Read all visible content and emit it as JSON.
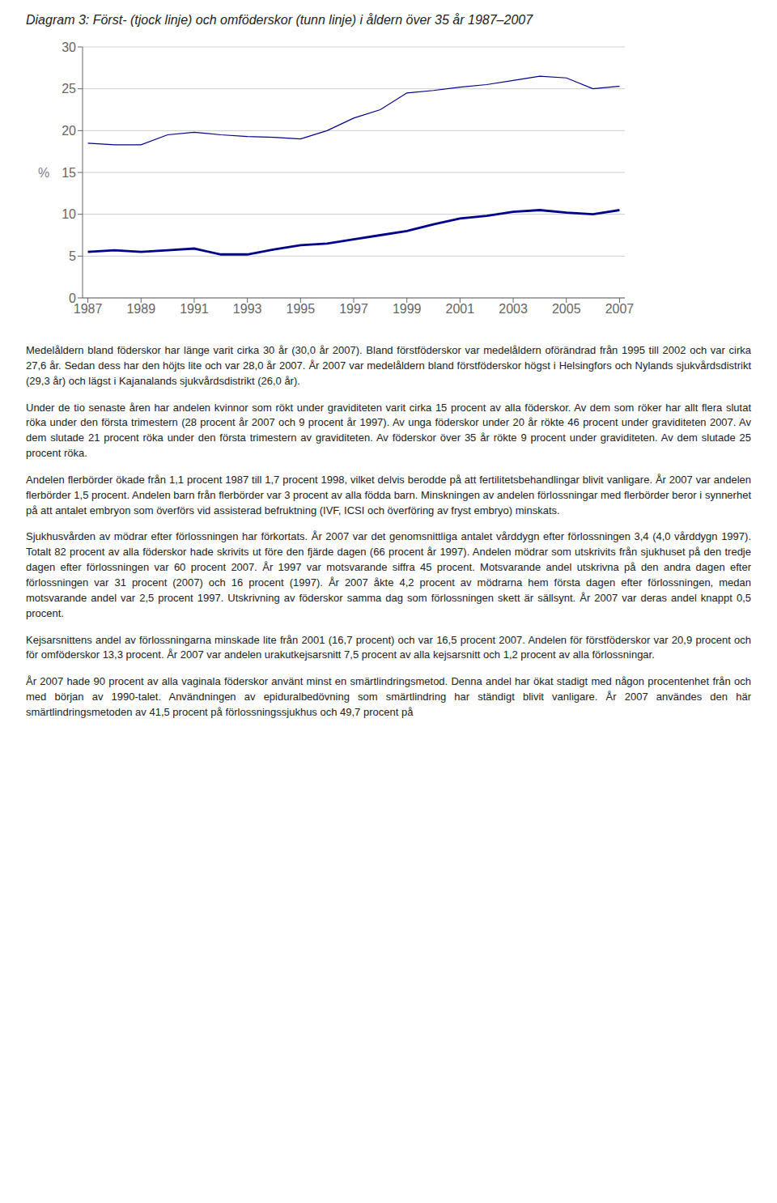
{
  "chart_data": {
    "type": "line",
    "title": "Diagram 3: Först- (tjock linje) och omföderskor (tunn linje) i åldern över 35 år 1987–2007",
    "x": [
      1987,
      1988,
      1989,
      1990,
      1991,
      1992,
      1993,
      1994,
      1995,
      1996,
      1997,
      1998,
      1999,
      2000,
      2001,
      2002,
      2003,
      2004,
      2005,
      2006,
      2007
    ],
    "series": [
      {
        "color": "#00008B",
        "values": [
          18.5,
          18.3,
          18.3,
          19.5,
          19.8,
          19.5,
          19.3,
          19.2,
          19.0,
          20.0,
          21.5,
          22.5,
          24.5,
          24.8,
          25.2,
          25.5,
          26.0,
          26.5,
          26.3,
          25.0,
          25.3
        ]
      },
      {
        "color": "#00008B",
        "values": [
          5.5,
          5.7,
          5.5,
          5.7,
          5.9,
          5.2,
          5.2,
          5.8,
          6.3,
          6.5,
          7.0,
          7.5,
          8.0,
          8.8,
          9.5,
          9.8,
          10.3,
          10.5,
          10.2,
          10.0,
          10.5
        ]
      }
    ],
    "xlim": [
      1986.8,
      2007.2
    ],
    "xticks": [
      1987,
      1989,
      1991,
      1993,
      1995,
      1997,
      1999,
      2001,
      2003,
      2005,
      2007
    ],
    "ylim": [
      0,
      30
    ],
    "yticks": [
      0,
      5,
      10,
      15,
      20,
      25,
      30
    ],
    "ylabel": "%",
    "grid": true,
    "annotations": [
      "Medelåldern bland föderskor har länge varit cirka 30 år (30,0 år 2007). Bland förstföderskor var medelåldern oförändrad från 1995 till 2002 och var cirka 27,6 år. Sedan dess har den höjts lite och var 28,0 år 2007. År 2007 var medelåldern bland förstföderskor högst i Helsingfors och Nylands sjukvårdsdistrikt (29,3 år) och lägst i Kajanalands sjukvårdsdistrikt (26,0 år).",
      "Under de tio senaste åren har andelen kvinnor som rökt under graviditeten varit cirka 15 procent av alla föderskor. Av dem som röker har allt flera slutat röka under den första trimestern (28 procent år 2007 och 9 procent år 1997). Av unga föderskor under 20 år rökte 46 procent under graviditeten 2007. Av dem slutade 21 procent röka under den första trimestern av graviditeten. Av föderskor över 35 år rökte 9 procent under graviditeten. Av dem slutade 25 procent röka.",
      "Andelen flerbörder ökade från 1,1 procent 1987 till 1,7 procent 1998, vilket delvis berodde på att fertilitetsbehandlingar blivit vanligare. År 2007 var andelen flerbörder 1,5 procent. Andelen barn från flerbörder var 3 procent av alla födda barn. Minskningen av andelen förlossningar med flerbörder beror i synnerhet på att antalet embryon som överförs vid assisterad befruktning (IVF, ICSI och överföring av fryst embryo) minskats.",
      "Sjukhusvården av mödrar efter förlossningen har förkortats. År 2007 var det genomsnittliga antalet vårddygn efter förlossningen 3,4 (4,0 vårddygn 1997). Totalt 82 procent av alla föderskor hade skrivits ut före den fjärde dagen (66 procent år 1997). Andelen mödrar som utskrivits från sjukhuset på den tredje dagen efter förlossningen var 60 procent 2007. År 1997 var motsvarande siffra 45 procent. Motsvarande andel utskrivna på den andra dagen efter förlossningen var 31 procent (2007) och 16 procent (1997). År 2007 åkte 4,2 procent av mödrarna hem första dagen efter förlossningen, medan motsvarande andel var 2,5 procent 1997. Utskrivning av föderskor samma dag som förlossningen skett är sällsynt. År 2007 var deras andel knappt 0,5 procent.",
      "Kejsarsnittens andel av förlossningarna minskade lite från 2001 (16,7 procent) och var 16,5 procent 2007. Andelen för förstföderskor var 20,9 procent och för omföderskor 13,3 procent. År 2007 var andelen urakutkejsarsnitt 7,5 procent av alla kejsarsnitt och 1,2 procent av alla förlossningar.",
      "År 2007 hade 90 procent av alla vaginala föderskor använt minst en smärtlindringsmetod. Denna andel har ökat stadigt med någon procentenhet från och med början av 1990-talet. Användningen av epiduralbedövning som smärtlindring har ständigt blivit vanligare. År 2007 användes den här smärtlindringsmetoden av 41,5 procent på förlossningssjukhus och 49,7 procent på"
    ]
  }
}
